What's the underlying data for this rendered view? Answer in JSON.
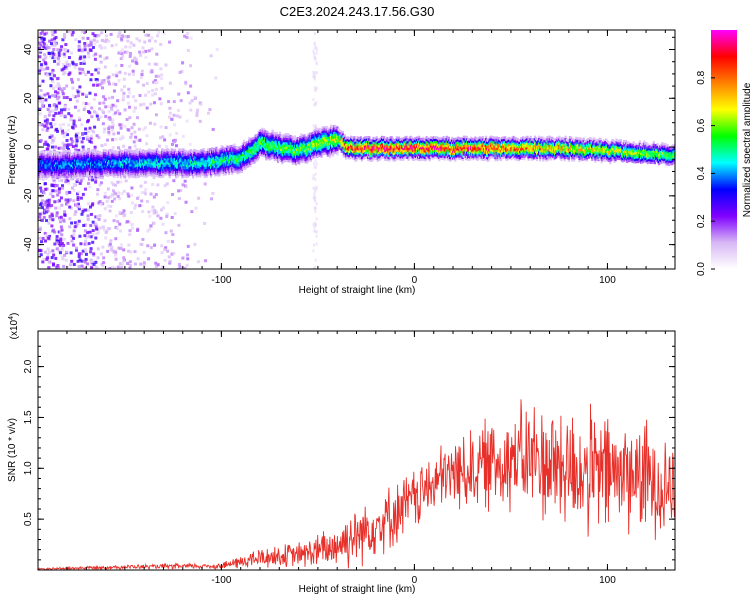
{
  "chart_data": [
    {
      "type": "heatmap",
      "title": "C2E3.2024.243.17.56.G30",
      "xlabel": "Height of straight line (km)",
      "ylabel": "Frequency (Hz)",
      "xlim": [
        -195,
        135
      ],
      "ylim": [
        -50,
        48
      ],
      "xticks": [
        -100,
        0,
        100
      ],
      "xtick_labels": [
        "-100",
        "0",
        "100"
      ],
      "yticks": [
        -40,
        -20,
        0,
        20,
        40
      ],
      "ytick_labels": [
        "-40",
        "-20",
        "0",
        "20",
        "40"
      ],
      "colorbar": {
        "label": "Normalized spectral amplitude",
        "range": [
          0,
          1
        ],
        "ticks": [
          0.0,
          0.2,
          0.4,
          0.6,
          0.8
        ],
        "tick_labels": [
          "0.0",
          "0.2",
          "0.4",
          "0.6",
          "0.8"
        ],
        "colors": [
          "#ffffff",
          "#d7b7f5",
          "#8000ff",
          "#0000ff",
          "#00ffff",
          "#00ff00",
          "#ffff00",
          "#ff8000",
          "#ff0000",
          "#ff00ff"
        ]
      },
      "ridge": {
        "x": [
          -195,
          -150,
          -110,
          -100,
          -90,
          -80,
          -70,
          -60,
          -50,
          -40,
          -35,
          -20,
          0,
          40,
          80,
          100,
          120,
          135
        ],
        "freq": [
          -7,
          -6,
          -6,
          -5,
          -4,
          2,
          0,
          -1,
          2,
          4,
          0,
          0,
          0,
          0,
          0,
          -1,
          -2,
          -3
        ],
        "peak_amplitude": [
          0.4,
          0.45,
          0.5,
          0.55,
          0.55,
          0.6,
          0.6,
          0.6,
          0.65,
          0.7,
          0.9,
          0.95,
          0.95,
          0.9,
          0.75,
          0.7,
          0.65,
          0.6
        ]
      }
    },
    {
      "type": "line",
      "xlabel": "Height of straight line (km)",
      "ylabel": "SNR (10 * v/v)",
      "scale_label": "(x10",
      "scale_exponent": "4",
      "scale_suffix": ")",
      "xlim": [
        -195,
        135
      ],
      "ylim": [
        0,
        2.35
      ],
      "xticks": [
        -100,
        0,
        100
      ],
      "xtick_labels": [
        "-100",
        "0",
        "100"
      ],
      "yticks": [
        0.5,
        1.0,
        1.5,
        2.0
      ],
      "ytick_labels": [
        "0.5",
        "1.0",
        "1.5",
        "2.0"
      ],
      "series": [
        {
          "name": "SNR",
          "color": "#e8302a",
          "envelope_x": [
            -195,
            -150,
            -100,
            -80,
            -60,
            -45,
            -30,
            -20,
            -10,
            0,
            10,
            20,
            30,
            40,
            50,
            60,
            70,
            80,
            90,
            100,
            110,
            120,
            135
          ],
          "envelope_mean": [
            0.01,
            0.03,
            0.04,
            0.12,
            0.15,
            0.2,
            0.35,
            0.45,
            0.55,
            0.7,
            0.85,
            0.95,
            1.0,
            1.05,
            1.1,
            1.1,
            1.05,
            1.0,
            0.95,
            0.95,
            0.95,
            0.9,
            0.85
          ],
          "envelope_spread": [
            0.01,
            0.02,
            0.03,
            0.1,
            0.12,
            0.2,
            0.3,
            0.3,
            0.3,
            0.3,
            0.3,
            0.35,
            0.4,
            0.45,
            0.5,
            0.55,
            0.6,
            0.6,
            0.6,
            0.6,
            0.55,
            0.55,
            0.5
          ]
        }
      ]
    }
  ]
}
